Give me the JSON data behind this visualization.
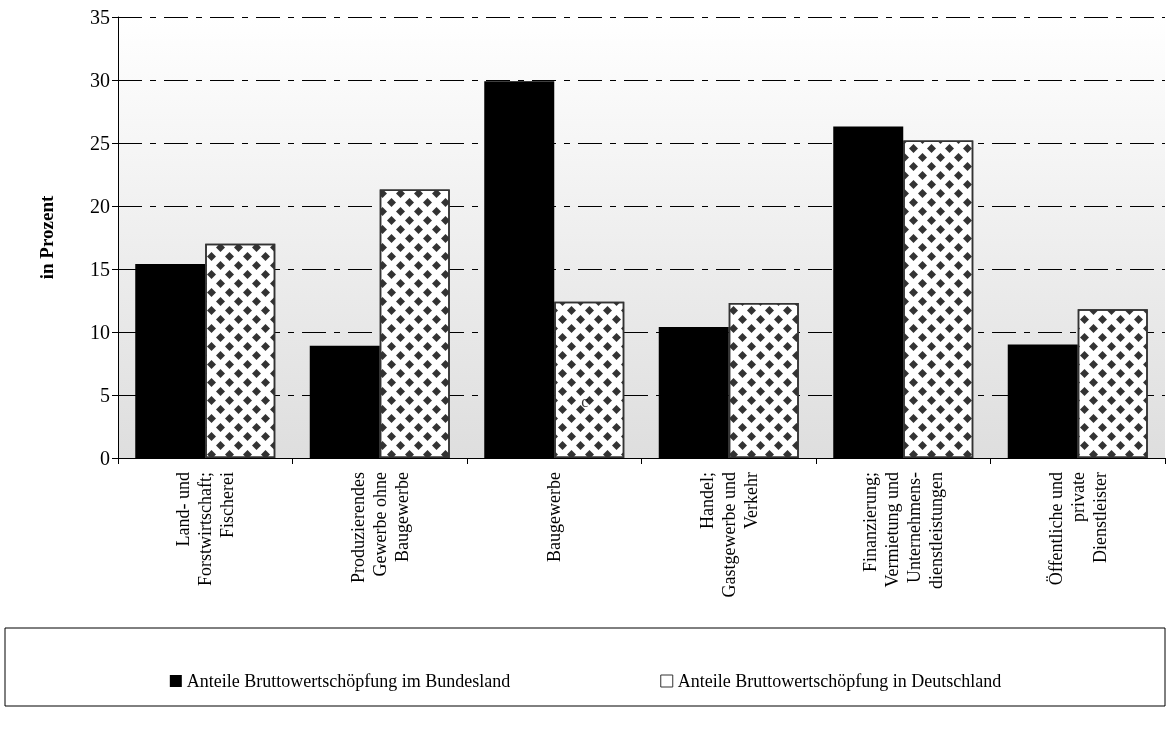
{
  "chart_data": {
    "type": "bar",
    "ylabel": "in Prozent",
    "categories": [
      "Land- und\nForstwirtschaft;\nFischerei",
      "Produzierendes\nGewerbe ohne\nBaugewerbe",
      "Baugewerbe",
      "Handel;\nGastgewerbe und\nVerkehr",
      "Finanzierung;\nVermietung und\nUnternehmens-\ndienstleistungen",
      "Öffentliche und\nprivate\nDienstleister"
    ],
    "series": [
      {
        "name": "Anteile Bruttowertschöpfung im Bundesland",
        "color": "#000000",
        "values": [
          15.4,
          8.9,
          29.9,
          10.4,
          26.3,
          9.0
        ]
      },
      {
        "name": "Anteile Bruttowertschöpfung in Deutschland",
        "color": "#ffffff",
        "values": [
          17.0,
          21.3,
          12.4,
          12.3,
          25.2,
          11.8
        ]
      }
    ],
    "annotations": [
      {
        "text": "c",
        "x": "Baugewerbe",
        "y": 4.5
      }
    ],
    "ylim": [
      0,
      35
    ],
    "yticks": [
      0,
      5,
      10,
      15,
      20,
      25,
      30,
      35
    ],
    "grid": "y",
    "legend": "bottom"
  }
}
